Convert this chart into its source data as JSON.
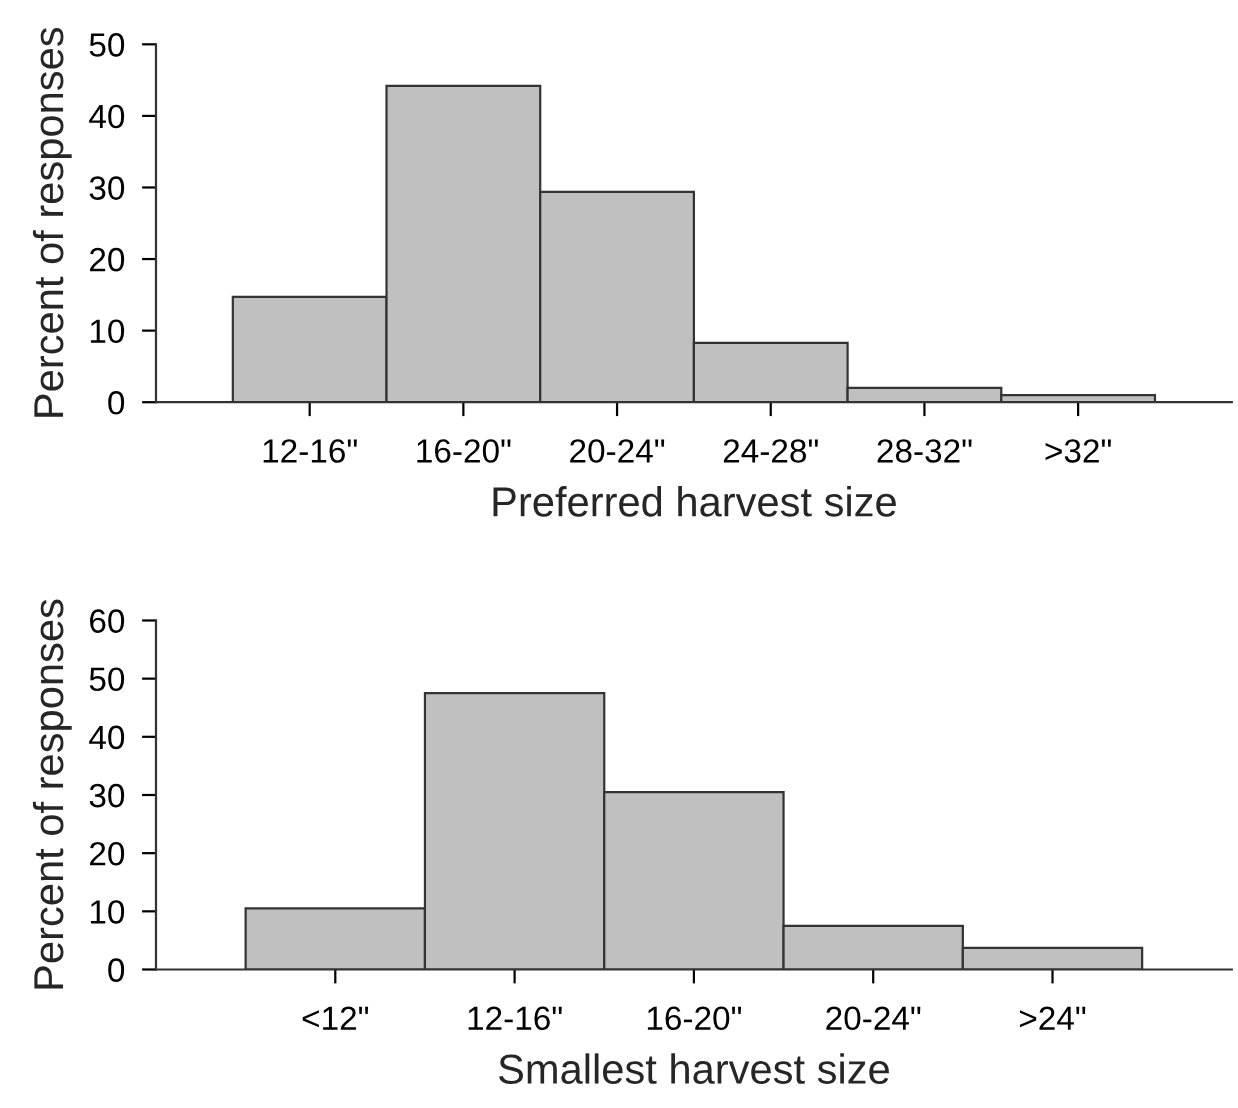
{
  "chart_data": [
    {
      "type": "bar",
      "xlabel": "Preferred harvest size",
      "ylabel": "Percent of responses",
      "categories": [
        "12-16\"",
        "16-20\"",
        "20-24\"",
        "24-28\"",
        "28-32\"",
        ">32\""
      ],
      "series": [
        {
          "color": "#c0c0c0",
          "values": [
            14.7,
            44.2,
            29.4,
            8.3,
            2.0,
            1.0
          ]
        }
      ],
      "ylim": [
        0,
        50
      ],
      "yticks": [
        0,
        10,
        20,
        30,
        40,
        50
      ],
      "grid": false
    },
    {
      "type": "bar",
      "xlabel": "Smallest harvest size",
      "ylabel": "Percent of responses",
      "categories": [
        "<12\"",
        "12-16\"",
        "16-20\"",
        "20-24\"",
        ">24\""
      ],
      "series": [
        {
          "color": "#c0c0c0",
          "values": [
            10.5,
            47.5,
            30.5,
            7.5,
            3.7
          ]
        }
      ],
      "ylim": [
        0,
        60
      ],
      "yticks": [
        0,
        10,
        20,
        30,
        40,
        50,
        60
      ],
      "grid": false
    }
  ]
}
